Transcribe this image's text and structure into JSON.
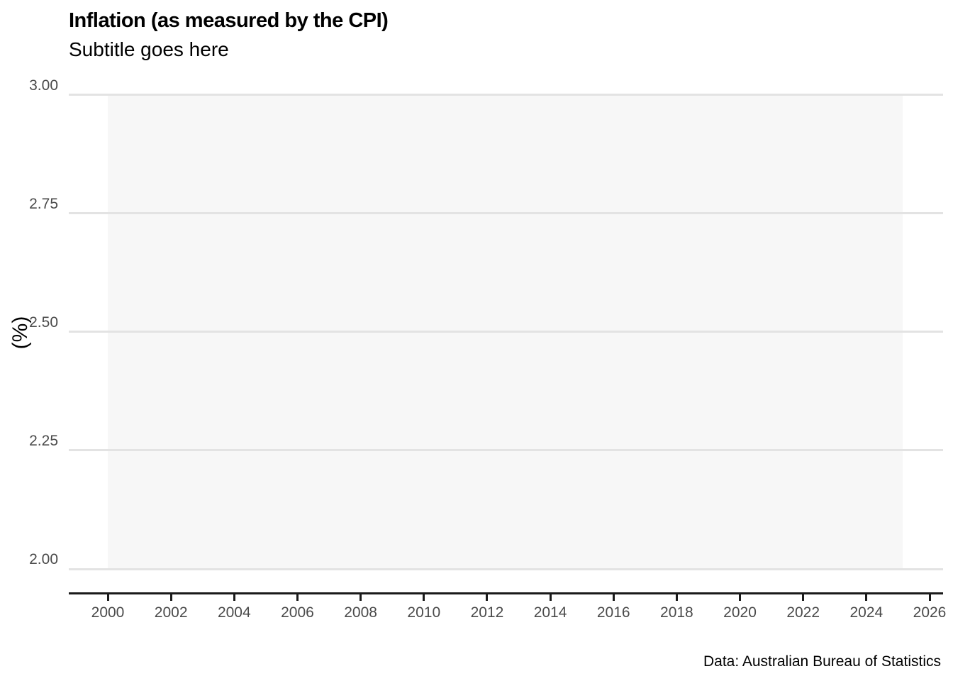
{
  "colors": {
    "band": "#f7f7f7",
    "gridline": "#e3e3e3",
    "axis_line": "#1a1a1a",
    "tick_label": "#4a4a4a",
    "text": "#000000"
  },
  "chart_data": {
    "type": "line",
    "title": "Inflation (as measured by the CPI)",
    "subtitle": "Subtitle goes here",
    "caption": "Data: Australian Bureau of Statistics",
    "ylabel": "(%)",
    "xlabel": "",
    "y_tick_values": [
      3.0,
      2.75,
      2.5,
      2.25,
      2.0
    ],
    "y_tick_labels": [
      "3.00",
      "2.75",
      "2.50",
      "2.25",
      "2.00"
    ],
    "x_tick_years": [
      2000,
      2002,
      2004,
      2006,
      2008,
      2010,
      2012,
      2014,
      2016,
      2018,
      2020,
      2022,
      2024,
      2026
    ],
    "ylim": [
      2.0,
      3.0
    ],
    "xlim": [
      1998.8,
      2026.4
    ],
    "grid": "horizontal-only",
    "legend": "none",
    "series": [],
    "annotation_band": {
      "description": "shaded rectangle spanning full y-range (2.00 to 3.00)",
      "x_start": 2000,
      "x_end": 2025.15,
      "y_start": 2.0,
      "y_end": 3.0,
      "fill": "#f7f7f7"
    }
  }
}
